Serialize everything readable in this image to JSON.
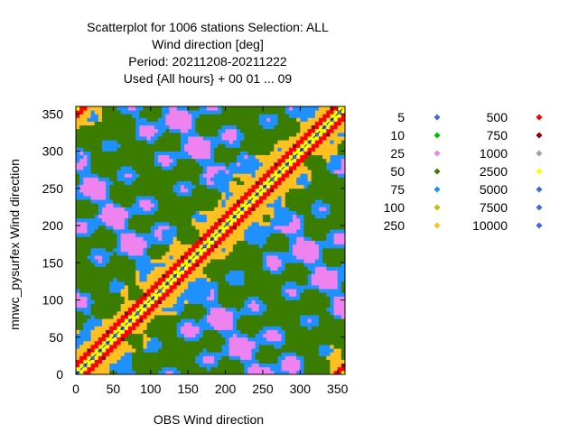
{
  "chart_data": {
    "type": "heatmap",
    "title_lines": [
      "Scatterplot for 1006 stations Selection: ALL",
      "Wind direction [deg]",
      "Period: 20211208-20211222",
      "Used {All hours} + 00 01 ... 09"
    ],
    "xlabel": "OBS Wind direction",
    "ylabel": "mnwc_pysurfex Wind direction",
    "xlim": [
      0,
      360
    ],
    "ylim": [
      0,
      360
    ],
    "xticks": [
      0,
      50,
      100,
      150,
      200,
      250,
      300,
      350
    ],
    "yticks": [
      0,
      50,
      100,
      150,
      200,
      250,
      300,
      350
    ],
    "grid": false,
    "diagonal_reference_line": true,
    "legend_position": "right",
    "legend": [
      {
        "label": "5",
        "color": "#4169e1"
      },
      {
        "label": "10",
        "color": "#00c000"
      },
      {
        "label": "25",
        "color": "#ee82ee"
      },
      {
        "label": "50",
        "color": "#3a7d00"
      },
      {
        "label": "75",
        "color": "#1e90ff"
      },
      {
        "label": "100",
        "color": "#c0c000"
      },
      {
        "label": "250",
        "color": "#ffc020"
      },
      {
        "label": "500",
        "color": "#ff0000"
      },
      {
        "label": "750",
        "color": "#8b0000"
      },
      {
        "label": "1000",
        "color": "#a0a0a0"
      },
      {
        "label": "2500",
        "color": "#ffff00"
      },
      {
        "label": "5000",
        "color": "#4169e1"
      },
      {
        "label": "7500",
        "color": "#4169e1"
      },
      {
        "label": "10000",
        "color": "#4169e1"
      }
    ]
  }
}
